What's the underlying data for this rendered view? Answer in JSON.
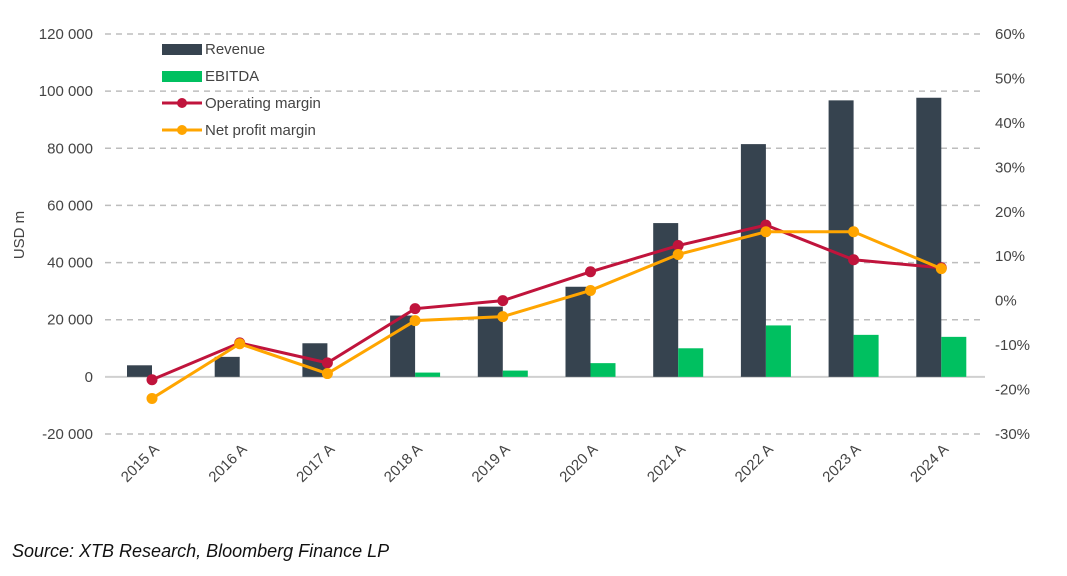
{
  "chart_data": {
    "type": "bar+line",
    "categories": [
      "2015 A",
      "2016 A",
      "2017 A",
      "2018 A",
      "2019 A",
      "2020 A",
      "2021 A",
      "2022 A",
      "2023 A",
      "2024 A"
    ],
    "ylabel": "USD m",
    "ylim": [
      -20000,
      120000
    ],
    "y2lim": [
      -30,
      60
    ],
    "yticks": [
      "-20 000",
      "0",
      "20 000",
      "40 000",
      "60 000",
      "80 000",
      "100 000",
      "120 000"
    ],
    "y2ticks": [
      "-30%",
      "-20%",
      "-10%",
      "0%",
      "10%",
      "20%",
      "30%",
      "40%",
      "50%",
      "60%"
    ],
    "grid": true,
    "legend": "top-left",
    "series": [
      {
        "name": "Revenue",
        "kind": "bar",
        "axis": "left",
        "color": "#36434f",
        "values": [
          4046,
          7000,
          11759,
          21461,
          24578,
          31536,
          53823,
          81462,
          96773,
          97690
        ]
      },
      {
        "name": "EBITDA",
        "kind": "bar",
        "axis": "left",
        "color": "#00c060",
        "values": [
          0,
          0,
          0,
          1500,
          2200,
          4800,
          10000,
          18000,
          14700,
          14000
        ]
      },
      {
        "name": "Operating margin",
        "kind": "line",
        "axis": "right",
        "color": "#c0143c",
        "values": [
          -17.8,
          -9.5,
          -14,
          -1.8,
          0,
          6.5,
          12.4,
          17,
          9.2,
          7.4
        ]
      },
      {
        "name": "Net profit margin",
        "kind": "line",
        "axis": "right",
        "color": "#ffa500",
        "values": [
          -22,
          -9.7,
          -16.4,
          -4.5,
          -3.6,
          2.3,
          10.4,
          15.5,
          15.5,
          7.2
        ]
      }
    ]
  },
  "source": "Source: XTB Research, Bloomberg Finance LP"
}
